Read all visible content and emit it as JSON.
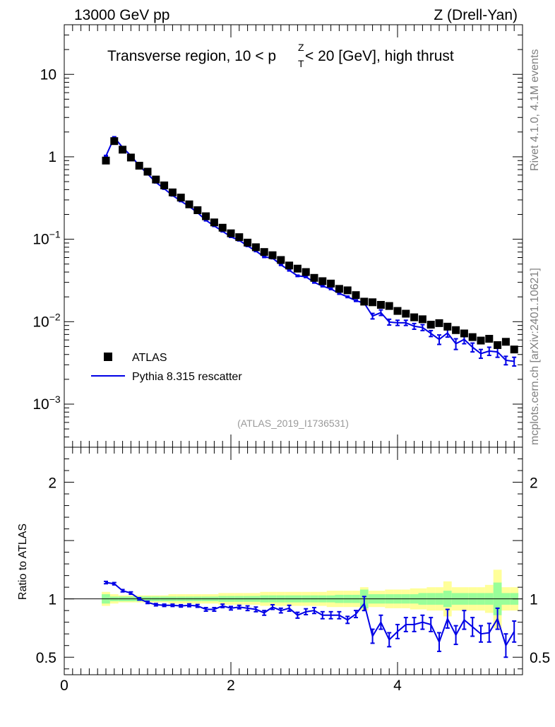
{
  "header": {
    "energy_label": "13000 GeV pp",
    "process_label": "Z (Drell-Yan)"
  },
  "side_labels": {
    "rivet": "Rivet 4.1.0,  4.1M events",
    "mcplots": "mcplots.cern.ch [arXiv:2401.10621]"
  },
  "analysis_id": "(ATLAS_2019_I1736531)",
  "colors": {
    "mc_line": "#0000e6",
    "data_marker": "#000000",
    "band_inner": "#99ff99",
    "band_outer": "#ffff99",
    "side_text": "#808080",
    "analysis_text": "#999999"
  },
  "chart_data": [
    {
      "type": "line",
      "panel": "main",
      "title": "Transverse region, 10 < p",
      "title_sup": "Z",
      "title_sub": "T",
      "title_rest": " < 20 [GeV], high thrust",
      "xlabel": "",
      "ylabel": "",
      "yscale": "log",
      "xlim": [
        0,
        5.5
      ],
      "ylim": [
        0.0003,
        40
      ],
      "y_ticks": [
        {
          "value": 10,
          "base": "10",
          "exp": ""
        },
        {
          "value": 1,
          "base": "1",
          "exp": ""
        },
        {
          "value": 0.1,
          "base": "10",
          "exp": "−1"
        },
        {
          "value": 0.01,
          "base": "10",
          "exp": "−2"
        },
        {
          "value": 0.001,
          "base": "10",
          "exp": "−3"
        }
      ],
      "legend": {
        "position": "bottom-left",
        "entries": [
          {
            "label": "ATLAS",
            "style": "marker"
          },
          {
            "label": "Pythia 8.315 rescatter",
            "style": "line"
          }
        ]
      },
      "series": [
        {
          "name": "ATLAS",
          "x": [
            0.5,
            0.6,
            0.7,
            0.8,
            0.9,
            1.0,
            1.1,
            1.2,
            1.3,
            1.4,
            1.5,
            1.6,
            1.7,
            1.8,
            1.9,
            2.0,
            2.1,
            2.2,
            2.3,
            2.4,
            2.5,
            2.6,
            2.7,
            2.8,
            2.9,
            3.0,
            3.1,
            3.2,
            3.3,
            3.4,
            3.5,
            3.6,
            3.7,
            3.8,
            3.9,
            4.0,
            4.1,
            4.2,
            4.3,
            4.4,
            4.5,
            4.6,
            4.7,
            4.8,
            4.9,
            5.0,
            5.1,
            5.2,
            5.3,
            5.4
          ],
          "values": [
            0.9,
            1.55,
            1.22,
            0.98,
            0.78,
            0.66,
            0.53,
            0.45,
            0.37,
            0.32,
            0.265,
            0.225,
            0.19,
            0.16,
            0.138,
            0.118,
            0.106,
            0.091,
            0.08,
            0.07,
            0.064,
            0.056,
            0.048,
            0.044,
            0.04,
            0.034,
            0.031,
            0.029,
            0.025,
            0.024,
            0.021,
            0.0175,
            0.0172,
            0.016,
            0.0155,
            0.0135,
            0.0125,
            0.0113,
            0.0107,
            0.0092,
            0.0096,
            0.0087,
            0.0079,
            0.0072,
            0.0065,
            0.0059,
            0.0062,
            0.0052,
            0.0057,
            0.0046
          ]
        },
        {
          "name": "Pythia 8.315 rescatter",
          "x": [
            0.5,
            0.6,
            0.7,
            0.8,
            0.9,
            1.0,
            1.1,
            1.2,
            1.3,
            1.4,
            1.5,
            1.6,
            1.7,
            1.8,
            1.9,
            2.0,
            2.1,
            2.2,
            2.3,
            2.4,
            2.5,
            2.6,
            2.7,
            2.8,
            2.9,
            3.0,
            3.1,
            3.2,
            3.3,
            3.4,
            3.5,
            3.6,
            3.7,
            3.8,
            3.9,
            4.0,
            4.1,
            4.2,
            4.3,
            4.4,
            4.5,
            4.6,
            4.7,
            4.8,
            4.9,
            5.0,
            5.1,
            5.2,
            5.3,
            5.4
          ],
          "values": [
            1.02,
            1.72,
            1.3,
            1.03,
            0.78,
            0.62,
            0.49,
            0.41,
            0.34,
            0.29,
            0.25,
            0.21,
            0.17,
            0.145,
            0.125,
            0.107,
            0.097,
            0.083,
            0.072,
            0.061,
            0.059,
            0.049,
            0.042,
            0.036,
            0.035,
            0.03,
            0.027,
            0.025,
            0.022,
            0.02,
            0.018,
            0.0168,
            0.0117,
            0.0129,
            0.0099,
            0.0097,
            0.0097,
            0.0088,
            0.0085,
            0.0072,
            0.0061,
            0.0073,
            0.0054,
            0.0061,
            0.0049,
            0.0041,
            0.0044,
            0.0043,
            0.0034,
            0.0033
          ],
          "errors": [
            0.02,
            0.03,
            0.02,
            0.02,
            0.01,
            0.01,
            0.008,
            0.006,
            0.005,
            0.004,
            0.004,
            0.003,
            0.003,
            0.002,
            0.002,
            0.0017,
            0.0016,
            0.0014,
            0.0012,
            0.001,
            0.001,
            0.0009,
            0.0008,
            0.0007,
            0.0007,
            0.0006,
            0.0005,
            0.0005,
            0.0005,
            0.0004,
            0.0004,
            0.0004,
            0.0009,
            0.001,
            0.0008,
            0.0007,
            0.0007,
            0.0007,
            0.0007,
            0.0006,
            0.0008,
            0.0008,
            0.0008,
            0.0007,
            0.0006,
            0.0005,
            0.0005,
            0.0006,
            0.0004,
            0.0004
          ]
        }
      ]
    },
    {
      "type": "line",
      "panel": "ratio",
      "ylabel": "Ratio to ATLAS",
      "xlabel": "",
      "xlim": [
        0,
        5.5
      ],
      "ylim": [
        0.35,
        2.3
      ],
      "x_ticks": [
        0,
        2,
        4
      ],
      "y_ticks": [
        0.5,
        1,
        2
      ],
      "y_tick_labels": [
        "0.5",
        "1",
        "2"
      ],
      "x_tick_labels": [
        "0",
        "2",
        "4"
      ],
      "reference_line": 1,
      "band": {
        "x_edges": [
          0.45,
          0.55,
          0.65,
          0.75,
          0.85,
          0.95,
          1.05,
          1.15,
          1.25,
          1.35,
          1.45,
          1.55,
          1.65,
          1.75,
          1.85,
          1.95,
          2.05,
          2.15,
          2.25,
          2.35,
          2.45,
          2.55,
          2.65,
          2.75,
          2.85,
          2.95,
          3.05,
          3.15,
          3.25,
          3.35,
          3.45,
          3.55,
          3.65,
          3.75,
          3.85,
          3.95,
          4.05,
          4.15,
          4.25,
          4.35,
          4.45,
          4.55,
          4.65,
          4.75,
          4.85,
          4.95,
          5.05,
          5.15,
          5.25,
          5.35,
          5.45
        ],
        "inner": [
          0.04,
          0.02,
          0.02,
          0.02,
          0.02,
          0.02,
          0.02,
          0.02,
          0.02,
          0.02,
          0.02,
          0.02,
          0.02,
          0.02,
          0.025,
          0.025,
          0.025,
          0.025,
          0.025,
          0.03,
          0.03,
          0.03,
          0.03,
          0.03,
          0.03,
          0.03,
          0.03,
          0.03,
          0.035,
          0.035,
          0.035,
          0.08,
          0.04,
          0.04,
          0.04,
          0.04,
          0.04,
          0.04,
          0.05,
          0.05,
          0.05,
          0.07,
          0.05,
          0.05,
          0.05,
          0.05,
          0.05,
          0.14,
          0.05,
          0.05
        ],
        "outer": [
          0.06,
          0.04,
          0.03,
          0.03,
          0.03,
          0.03,
          0.03,
          0.03,
          0.04,
          0.04,
          0.04,
          0.04,
          0.04,
          0.04,
          0.05,
          0.05,
          0.05,
          0.05,
          0.05,
          0.06,
          0.06,
          0.06,
          0.06,
          0.06,
          0.06,
          0.06,
          0.06,
          0.07,
          0.07,
          0.07,
          0.07,
          0.1,
          0.07,
          0.07,
          0.08,
          0.08,
          0.08,
          0.09,
          0.09,
          0.1,
          0.1,
          0.15,
          0.1,
          0.1,
          0.1,
          0.1,
          0.12,
          0.25,
          0.1,
          0.1
        ]
      },
      "series": [
        {
          "name": "Pythia 8.315 rescatter",
          "x": [
            0.5,
            0.6,
            0.7,
            0.8,
            0.9,
            1.0,
            1.1,
            1.2,
            1.3,
            1.4,
            1.5,
            1.6,
            1.7,
            1.8,
            1.9,
            2.0,
            2.1,
            2.2,
            2.3,
            2.4,
            2.5,
            2.6,
            2.7,
            2.8,
            2.9,
            3.0,
            3.1,
            3.2,
            3.3,
            3.4,
            3.5,
            3.6,
            3.7,
            3.8,
            3.9,
            4.0,
            4.1,
            4.2,
            4.3,
            4.4,
            4.5,
            4.6,
            4.7,
            4.8,
            4.9,
            5.0,
            5.1,
            5.2,
            5.3,
            5.4
          ],
          "values": [
            1.14,
            1.13,
            1.07,
            1.05,
            1.0,
            0.97,
            0.95,
            0.945,
            0.945,
            0.94,
            0.945,
            0.94,
            0.91,
            0.91,
            0.94,
            0.92,
            0.93,
            0.92,
            0.91,
            0.88,
            0.93,
            0.9,
            0.92,
            0.86,
            0.89,
            0.9,
            0.86,
            0.86,
            0.86,
            0.82,
            0.87,
            0.96,
            0.68,
            0.8,
            0.65,
            0.72,
            0.78,
            0.78,
            0.8,
            0.78,
            0.63,
            0.83,
            0.69,
            0.82,
            0.76,
            0.7,
            0.71,
            0.83,
            0.6,
            0.72
          ],
          "errors": [
            0.01,
            0.01,
            0.01,
            0.01,
            0.01,
            0.01,
            0.01,
            0.01,
            0.01,
            0.01,
            0.012,
            0.012,
            0.015,
            0.015,
            0.015,
            0.015,
            0.015,
            0.02,
            0.02,
            0.02,
            0.02,
            0.02,
            0.025,
            0.025,
            0.025,
            0.025,
            0.03,
            0.03,
            0.03,
            0.03,
            0.03,
            0.06,
            0.06,
            0.06,
            0.06,
            0.06,
            0.06,
            0.06,
            0.06,
            0.06,
            0.08,
            0.08,
            0.08,
            0.08,
            0.08,
            0.07,
            0.08,
            0.09,
            0.1,
            0.09
          ]
        }
      ]
    }
  ]
}
